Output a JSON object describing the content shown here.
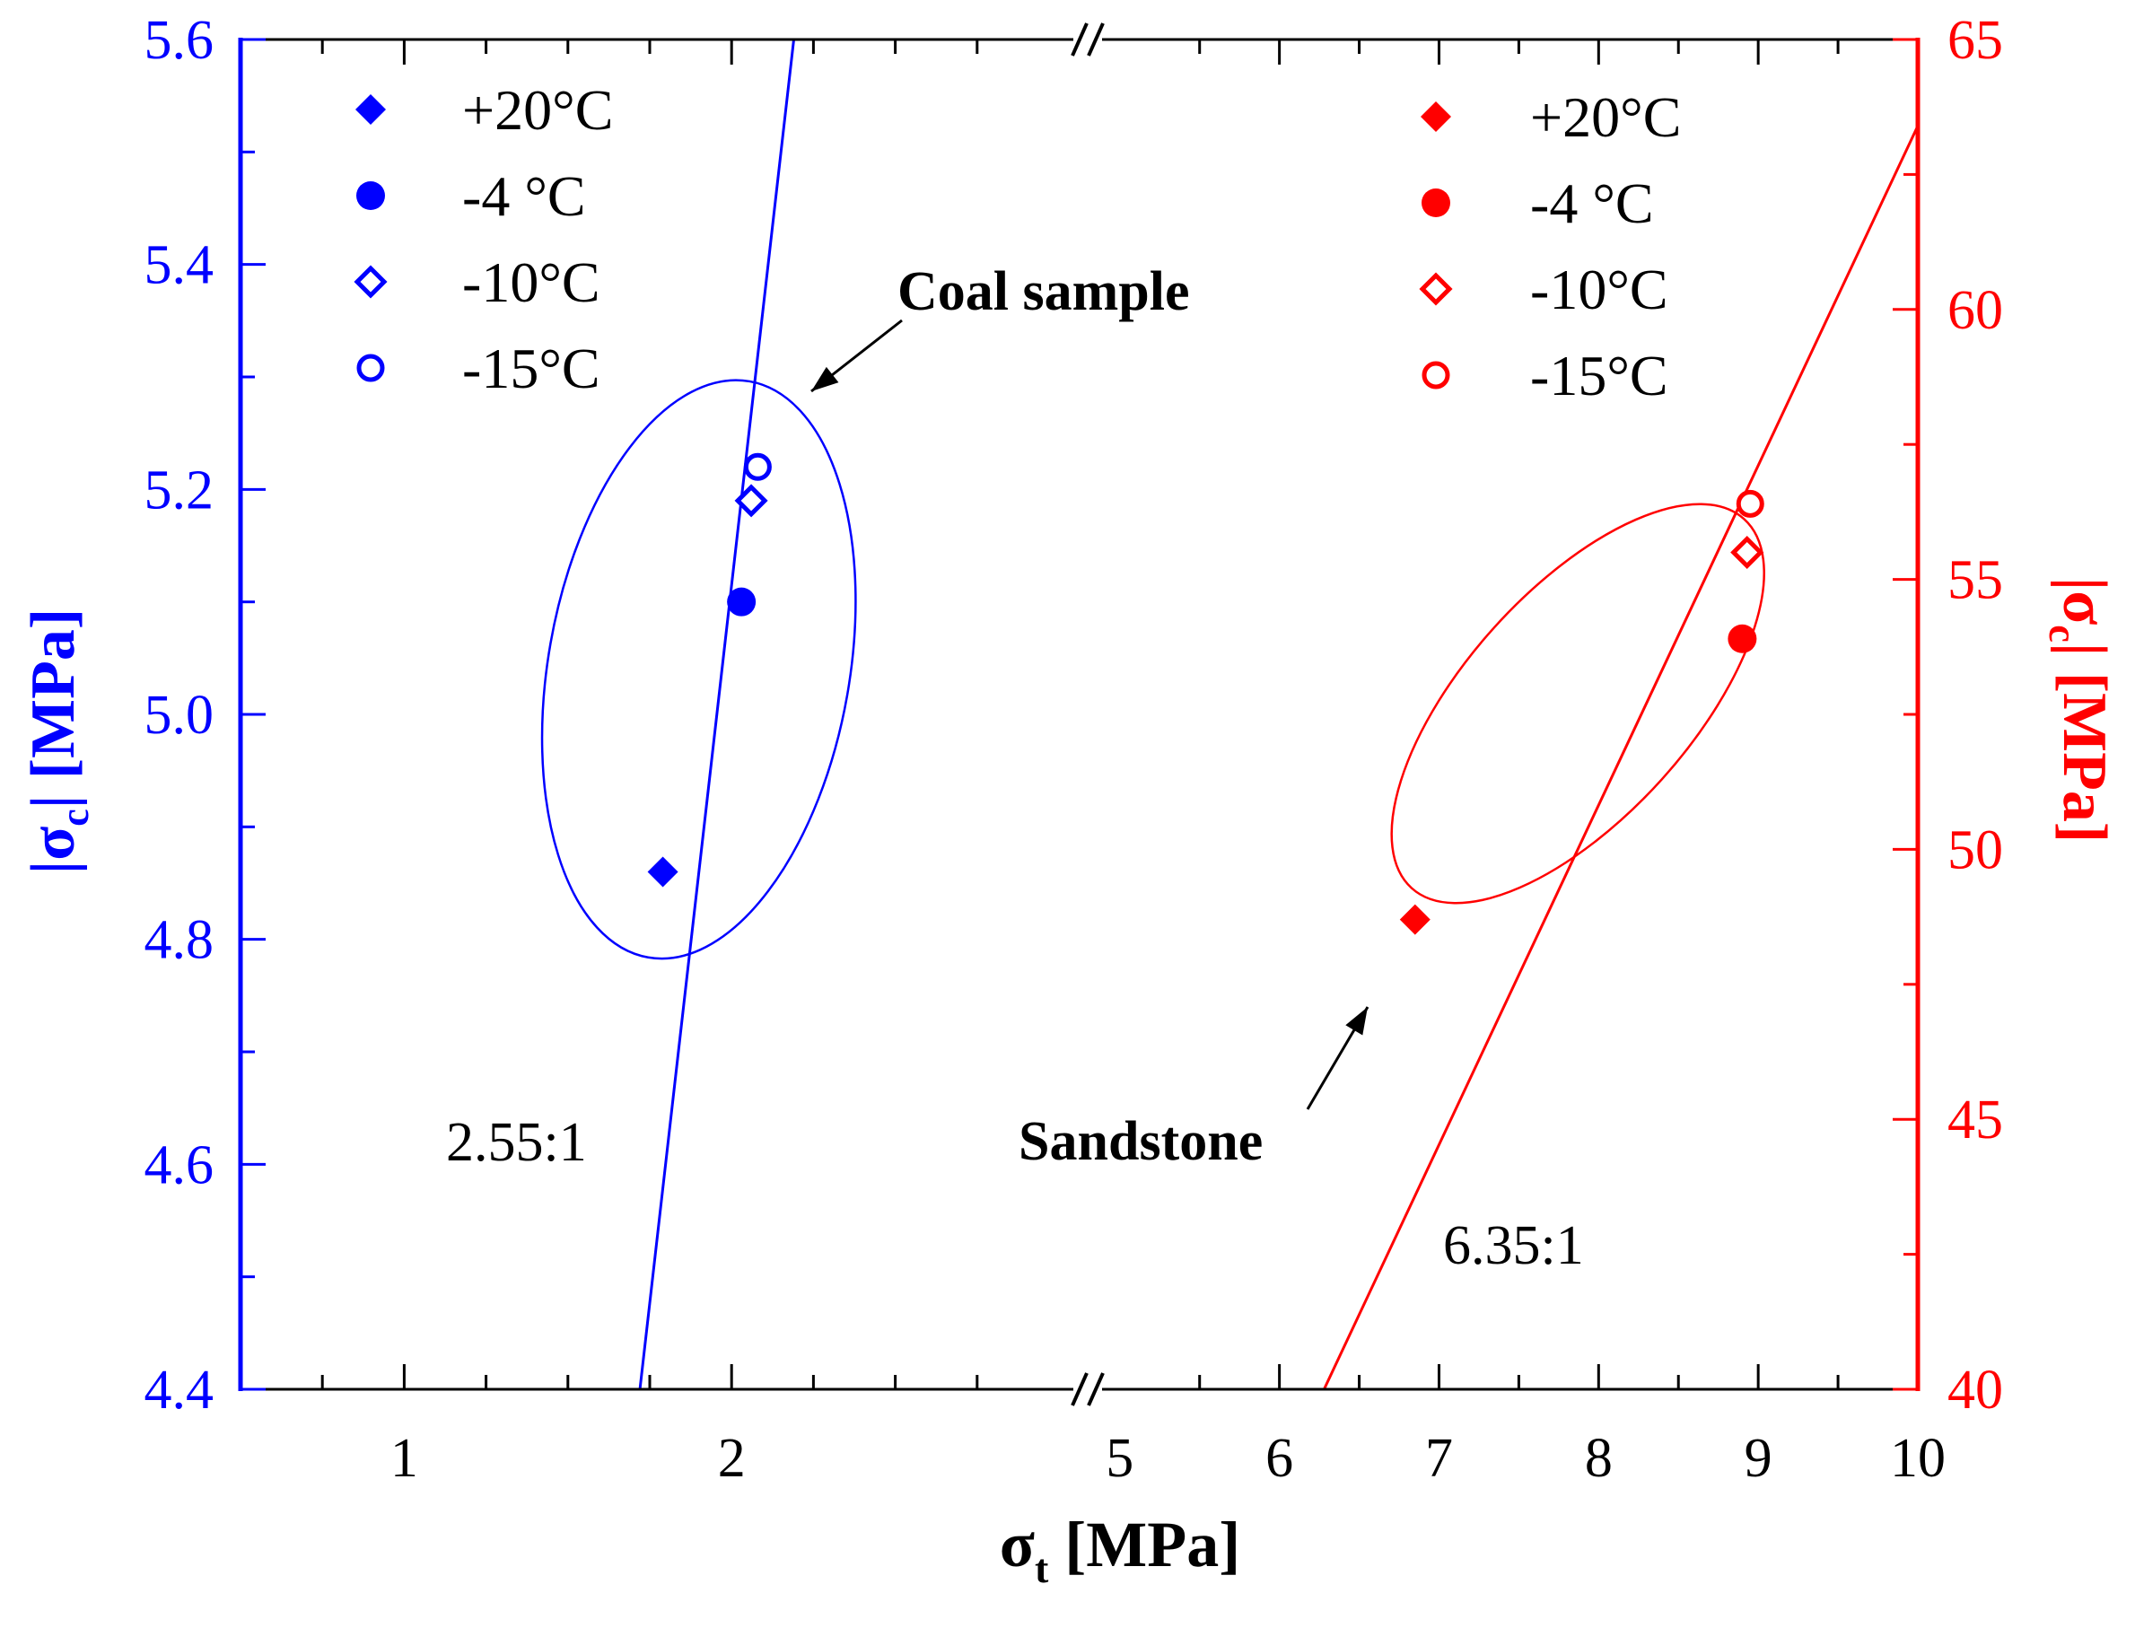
{
  "chart_data": {
    "type": "scatter",
    "colors": {
      "coal": "#0000ff",
      "sandstone": "#ff0000",
      "axis": "#000000"
    },
    "x_axis": {
      "label_main": "σ",
      "label_sub": "t",
      "label_unit": "[MPa]",
      "segments": [
        {
          "range": [
            0.5,
            3.0
          ],
          "ticks": [
            1,
            2
          ],
          "tick_labels": [
            "1",
            "2"
          ]
        },
        {
          "range": [
            4.9,
            10.0
          ],
          "ticks": [
            5,
            6,
            7,
            8,
            9,
            10
          ],
          "tick_labels": [
            "5",
            "6",
            "7",
            "8",
            "9",
            "10"
          ]
        }
      ]
    },
    "y_left": {
      "label": "|σc| [MPa]",
      "label_main": "|σ",
      "label_sub": "c",
      "label_tail": "| [MPa]",
      "range": [
        4.4,
        5.6
      ],
      "ticks": [
        4.4,
        4.6,
        4.8,
        5.0,
        5.2,
        5.4,
        5.6
      ],
      "tick_labels": [
        "4.4",
        "4.6",
        "4.8",
        "5.0",
        "5.2",
        "5.4",
        "5.6"
      ]
    },
    "y_right": {
      "label": "|σc| [MPa]",
      "label_main": "|σ",
      "label_sub": "c",
      "label_tail": "| [MPa]",
      "range": [
        40,
        65
      ],
      "ticks": [
        40,
        45,
        50,
        55,
        60,
        65
      ],
      "tick_labels": [
        "40",
        "45",
        "50",
        "55",
        "60",
        "65"
      ]
    },
    "series": [
      {
        "name": "Coal sample",
        "axis": "left",
        "color": "#0000ff",
        "points": [
          {
            "label": "+20°C",
            "marker": "diamond-filled",
            "x": 1.79,
            "y": 4.86
          },
          {
            "label": "-4 °C",
            "marker": "circle-filled",
            "x": 2.03,
            "y": 5.1
          },
          {
            "label": "-10°C",
            "marker": "diamond-open",
            "x": 2.06,
            "y": 5.19
          },
          {
            "label": "-15°C",
            "marker": "circle-open",
            "x": 2.08,
            "y": 5.22
          }
        ],
        "fit_line": {
          "x": [
            1.72,
            2.19
          ],
          "y": [
            4.4,
            5.6
          ]
        },
        "ellipse": {
          "cx": 1.9,
          "cy": 5.04,
          "rx_mpa": 0.46,
          "ry_mpa": 0.26,
          "rotation_deg": 10
        }
      },
      {
        "name": "Sandstone",
        "axis": "right",
        "color": "#ff0000",
        "points": [
          {
            "label": "+20°C",
            "marker": "diamond-filled",
            "x": 6.85,
            "y": 48.7
          },
          {
            "label": "-4 °C",
            "marker": "circle-filled",
            "x": 8.9,
            "y": 53.9
          },
          {
            "label": "-10°C",
            "marker": "diamond-open",
            "x": 8.93,
            "y": 55.5
          },
          {
            "label": "-15°C",
            "marker": "circle-open",
            "x": 8.95,
            "y": 56.4
          }
        ],
        "fit_line": {
          "x": [
            6.28,
            10.0
          ],
          "y": [
            40.0,
            63.4
          ]
        },
        "ellipse": {
          "cx": 7.87,
          "cy": 52.7,
          "rx_mpa": 1.8,
          "ry_mpa": 4.6,
          "rotation_deg": 42
        }
      }
    ],
    "legend_left": [
      {
        "marker": "diamond-filled",
        "text": "+20°C"
      },
      {
        "marker": "circle-filled",
        "text": "-4 °C"
      },
      {
        "marker": "diamond-open",
        "text": "-10°C"
      },
      {
        "marker": "circle-open",
        "text": "-15°C"
      }
    ],
    "legend_right": [
      {
        "marker": "diamond-filled",
        "text": "+20°C"
      },
      {
        "marker": "circle-filled",
        "text": "-4 °C"
      },
      {
        "marker": "diamond-open",
        "text": "-10°C"
      },
      {
        "marker": "circle-open",
        "text": "-15°C"
      }
    ],
    "annotations": {
      "coal_label": "Coal sample",
      "sandstone_label": "Sandstone",
      "coal_ratio": "2.55:1",
      "sandstone_ratio": "6.35:1"
    }
  }
}
